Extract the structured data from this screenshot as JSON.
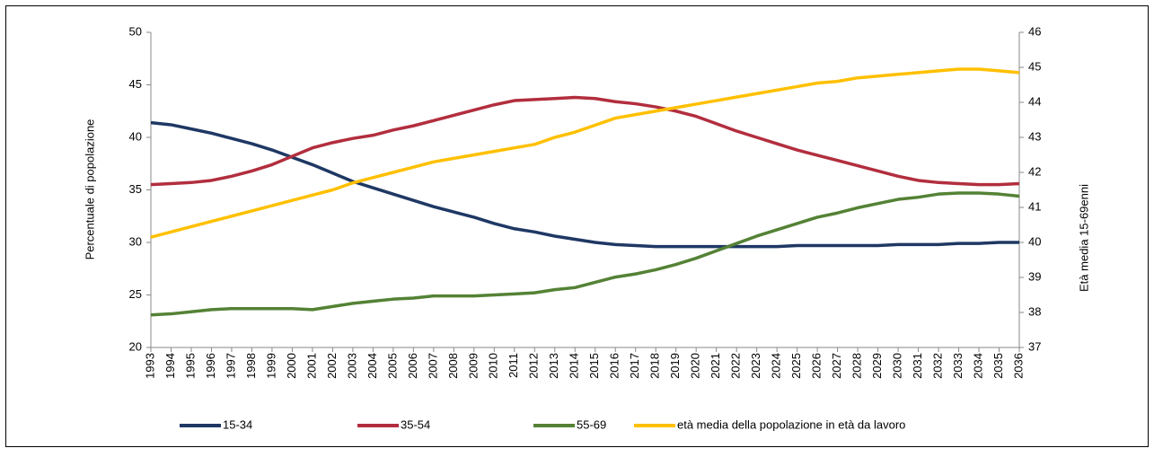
{
  "chart_data": {
    "type": "line",
    "ylabel": "Percentuale di popolazione",
    "y2label": "Età media 15-69enni",
    "categories": [
      "1993",
      "1994",
      "1995",
      "1996",
      "1997",
      "1998",
      "1999",
      "2000",
      "2001",
      "2002",
      "2003",
      "2004",
      "2005",
      "2006",
      "2007",
      "2008",
      "2009",
      "2010",
      "2011",
      "2012",
      "2013",
      "2014",
      "2015",
      "2016",
      "2017",
      "2018",
      "2019",
      "2020",
      "2021",
      "2022",
      "2023",
      "2024",
      "2025",
      "2026",
      "2027",
      "2028",
      "2029",
      "2030",
      "2031",
      "2032",
      "2033",
      "2034",
      "2035",
      "2036"
    ],
    "ylim": [
      20,
      50
    ],
    "yticks": [
      20,
      25,
      30,
      35,
      40,
      45,
      50
    ],
    "y2lim": [
      37,
      46
    ],
    "y2ticks": [
      37,
      38,
      39,
      40,
      41,
      42,
      43,
      44,
      45,
      46
    ],
    "legend": "bottom",
    "series": [
      {
        "name": "15-34",
        "color": "#1f3864",
        "values": [
          41.4,
          41.2,
          40.8,
          40.4,
          39.9,
          39.4,
          38.8,
          38.1,
          37.4,
          36.6,
          35.8,
          35.2,
          34.6,
          34.0,
          33.4,
          32.9,
          32.4,
          31.8,
          31.3,
          31.0,
          30.6,
          30.3,
          30.0,
          29.8,
          29.7,
          29.6,
          29.6,
          29.6,
          29.6,
          29.6,
          29.6,
          29.6,
          29.7,
          29.7,
          29.7,
          29.7,
          29.7,
          29.8,
          29.8,
          29.8,
          29.9,
          29.9,
          30.0,
          30.0
        ]
      },
      {
        "name": "35-54",
        "color": "#b22e3e",
        "values": [
          35.5,
          35.6,
          35.7,
          35.9,
          36.3,
          36.8,
          37.4,
          38.2,
          39.0,
          39.5,
          39.9,
          40.2,
          40.7,
          41.1,
          41.6,
          42.1,
          42.6,
          43.1,
          43.5,
          43.6,
          43.7,
          43.8,
          43.7,
          43.4,
          43.2,
          42.9,
          42.5,
          42.0,
          41.3,
          40.6,
          40.0,
          39.4,
          38.8,
          38.3,
          37.8,
          37.3,
          36.8,
          36.3,
          35.9,
          35.7,
          35.6,
          35.5,
          35.5,
          35.6
        ]
      },
      {
        "name": "55-69",
        "color": "#548235",
        "values": [
          23.1,
          23.2,
          23.4,
          23.6,
          23.7,
          23.7,
          23.7,
          23.7,
          23.6,
          23.9,
          24.2,
          24.4,
          24.6,
          24.7,
          24.9,
          24.9,
          24.9,
          25.0,
          25.1,
          25.2,
          25.5,
          25.7,
          26.2,
          26.7,
          27.0,
          27.4,
          27.9,
          28.5,
          29.2,
          29.9,
          30.6,
          31.2,
          31.8,
          32.4,
          32.8,
          33.3,
          33.7,
          34.1,
          34.3,
          34.6,
          34.7,
          34.7,
          34.6,
          34.4
        ]
      },
      {
        "name": "età media della popolazione in età da lavoro",
        "color": "#ffc000",
        "axis": "y2",
        "values": [
          40.15,
          40.3,
          40.45,
          40.6,
          40.75,
          40.9,
          41.05,
          41.2,
          41.35,
          41.5,
          41.7,
          41.85,
          42.0,
          42.15,
          42.3,
          42.4,
          42.5,
          42.6,
          42.7,
          42.8,
          43.0,
          43.15,
          43.35,
          43.55,
          43.65,
          43.75,
          43.85,
          43.95,
          44.05,
          44.15,
          44.25,
          44.35,
          44.45,
          44.55,
          44.6,
          44.7,
          44.75,
          44.8,
          44.85,
          44.9,
          44.95,
          44.95,
          44.9,
          44.85
        ]
      }
    ]
  }
}
